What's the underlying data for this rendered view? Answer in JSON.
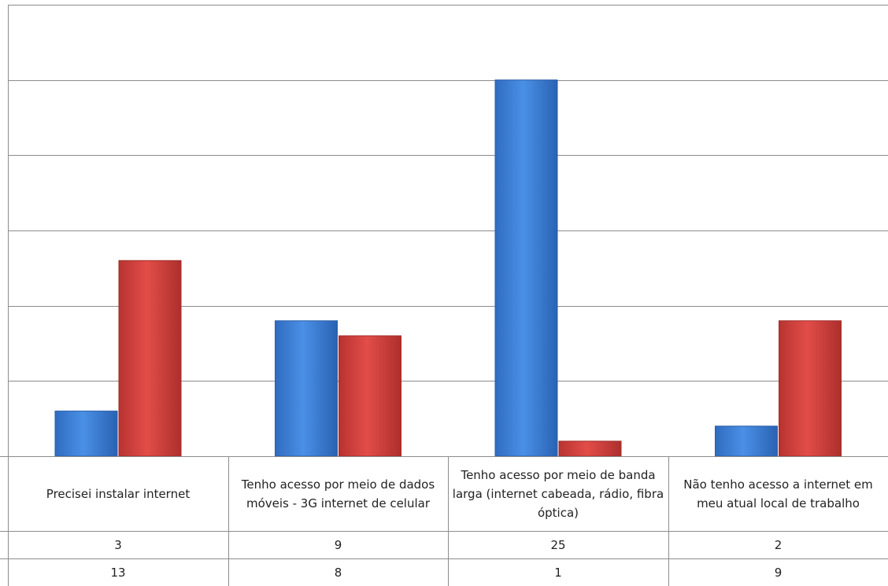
{
  "chart_data": {
    "type": "bar",
    "categories": [
      "Precisei instalar internet",
      "Tenho acesso por meio de dados móveis - 3G internet de celular",
      "Tenho acesso por meio de banda larga (internet cabeada, rádio, fibra óptica)",
      "Não tenho acesso a internet em meu atual local de trabalho"
    ],
    "series": [
      {
        "values": [
          3,
          9,
          25,
          2
        ],
        "color": "#3a7fd5"
      },
      {
        "values": [
          13,
          8,
          1,
          9
        ],
        "color": "#d23f3c"
      }
    ],
    "ylim": [
      0,
      30
    ],
    "yticks_step": 5,
    "grid": true,
    "legend": "data-table-below"
  }
}
